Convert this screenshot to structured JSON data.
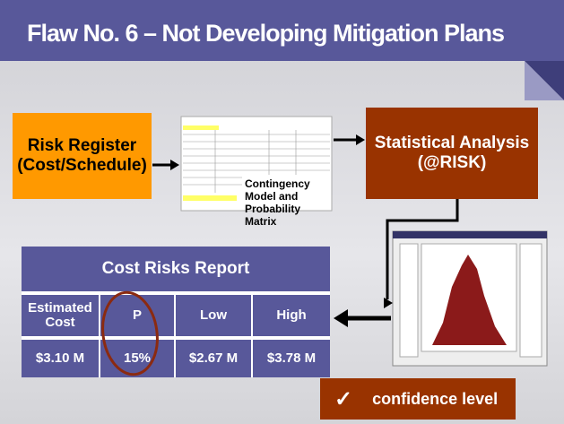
{
  "header": {
    "title": "Flaw No. 6 – Not Developing Mitigation Plans"
  },
  "nodes": [
    {
      "lines": [
        "Risk Register",
        "(Cost/Schedule)"
      ]
    },
    {
      "lines": [
        "Contingency",
        "Model and",
        "Probability",
        "Matrix"
      ]
    },
    {
      "lines": [
        "Statistical Analysis",
        "(@RISK)"
      ]
    }
  ],
  "table": {
    "title": "Cost Risks Report",
    "header": [
      "Estimated Cost",
      "P",
      "Low",
      "High"
    ],
    "rows": [
      [
        "$3.10 M",
        "15%",
        "$2.67 M",
        "$3.78 M"
      ]
    ]
  },
  "callout": {
    "icon": "✓",
    "text": "confidence level"
  }
}
